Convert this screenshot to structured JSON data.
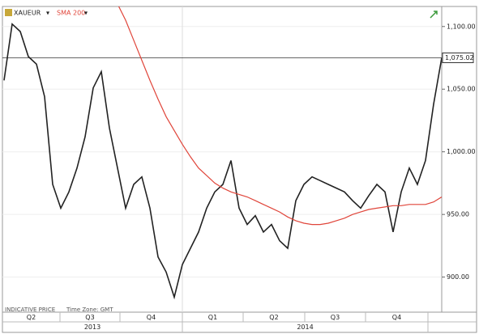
{
  "chart_data": {
    "type": "line",
    "legend": [
      "XAUEUR",
      "SMA 200"
    ],
    "footer": [
      "INDICATIVE PRICE",
      "Time Zone: GMT"
    ],
    "quarters": [
      "Q2",
      "Q3",
      "Q4",
      "Q1",
      "Q2",
      "Q3",
      "Q4"
    ],
    "years": [
      "2013",
      "2014"
    ],
    "ylim": [
      872,
      1116
    ],
    "yticks": [
      {
        "value": 900,
        "label": "900.00"
      },
      {
        "value": 950,
        "label": "950.00"
      },
      {
        "value": 1000,
        "label": "1,000.00"
      },
      {
        "value": 1050,
        "label": "1,050.00"
      },
      {
        "value": 1100,
        "label": "1,100.00"
      }
    ],
    "last_price": {
      "value": 1075.02,
      "label": "1,075.02"
    },
    "series": [
      {
        "name": "XAUEUR",
        "color": "#222222",
        "values": [
          1057,
          1102,
          1096,
          1076,
          1070,
          1044,
          974,
          955,
          968,
          987,
          1012,
          1051,
          1064,
          1019,
          987,
          955,
          974,
          980,
          955,
          916,
          904,
          884,
          910,
          923,
          936,
          955,
          968,
          974,
          993,
          955,
          942,
          949,
          936,
          942,
          929,
          923,
          961,
          974,
          980,
          977,
          974,
          971,
          968,
          961,
          955,
          965,
          974,
          968,
          936,
          968,
          987,
          974,
          993,
          1038,
          1075.02
        ]
      },
      {
        "name": "SMA 200",
        "color": "#e0453a",
        "values": [
          null,
          null,
          null,
          null,
          null,
          null,
          null,
          null,
          null,
          null,
          null,
          null,
          null,
          null,
          1118,
          1105,
          1089,
          1073,
          1057,
          1042,
          1028,
          1017,
          1006,
          996,
          987,
          981,
          975,
          971,
          968,
          966,
          964,
          961,
          958,
          955,
          952,
          948,
          945,
          943,
          942,
          942,
          943,
          945,
          947,
          950,
          952,
          954,
          955,
          956,
          957,
          957,
          958,
          958,
          958,
          960,
          964
        ]
      }
    ]
  }
}
